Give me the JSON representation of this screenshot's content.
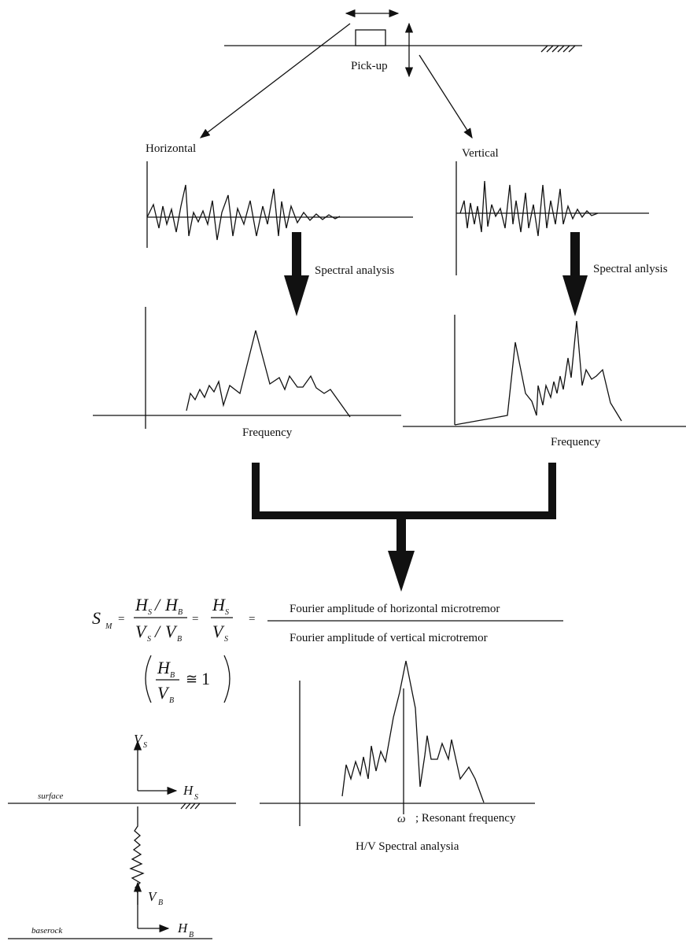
{
  "pickup": "Pick-up",
  "horizontal": {
    "label": "Horizontal",
    "analysis": "Spectral analysis",
    "axis": "Frequency"
  },
  "vertical": {
    "label": "Vertical",
    "analysis": "Spectral anlysis",
    "axis": "Frequency"
  },
  "formula": {
    "s": "S",
    "m": "M",
    "eq": "=",
    "h": "H",
    "v": "V",
    "sub_s": "S",
    "sub_b": "B",
    "slash": "/",
    "approx": "≅",
    "one": "1"
  },
  "ratio": {
    "numerator": "Fourier amplitude of horizontal microtremor",
    "denominator": "Fourier amplitude of vertical microtremor"
  },
  "result": {
    "omega": "ω",
    "resonant": "; Resonant frequency",
    "caption": "H/V Spectral analysia"
  },
  "profile": {
    "surface": "surface",
    "baserock": "baserock"
  }
}
